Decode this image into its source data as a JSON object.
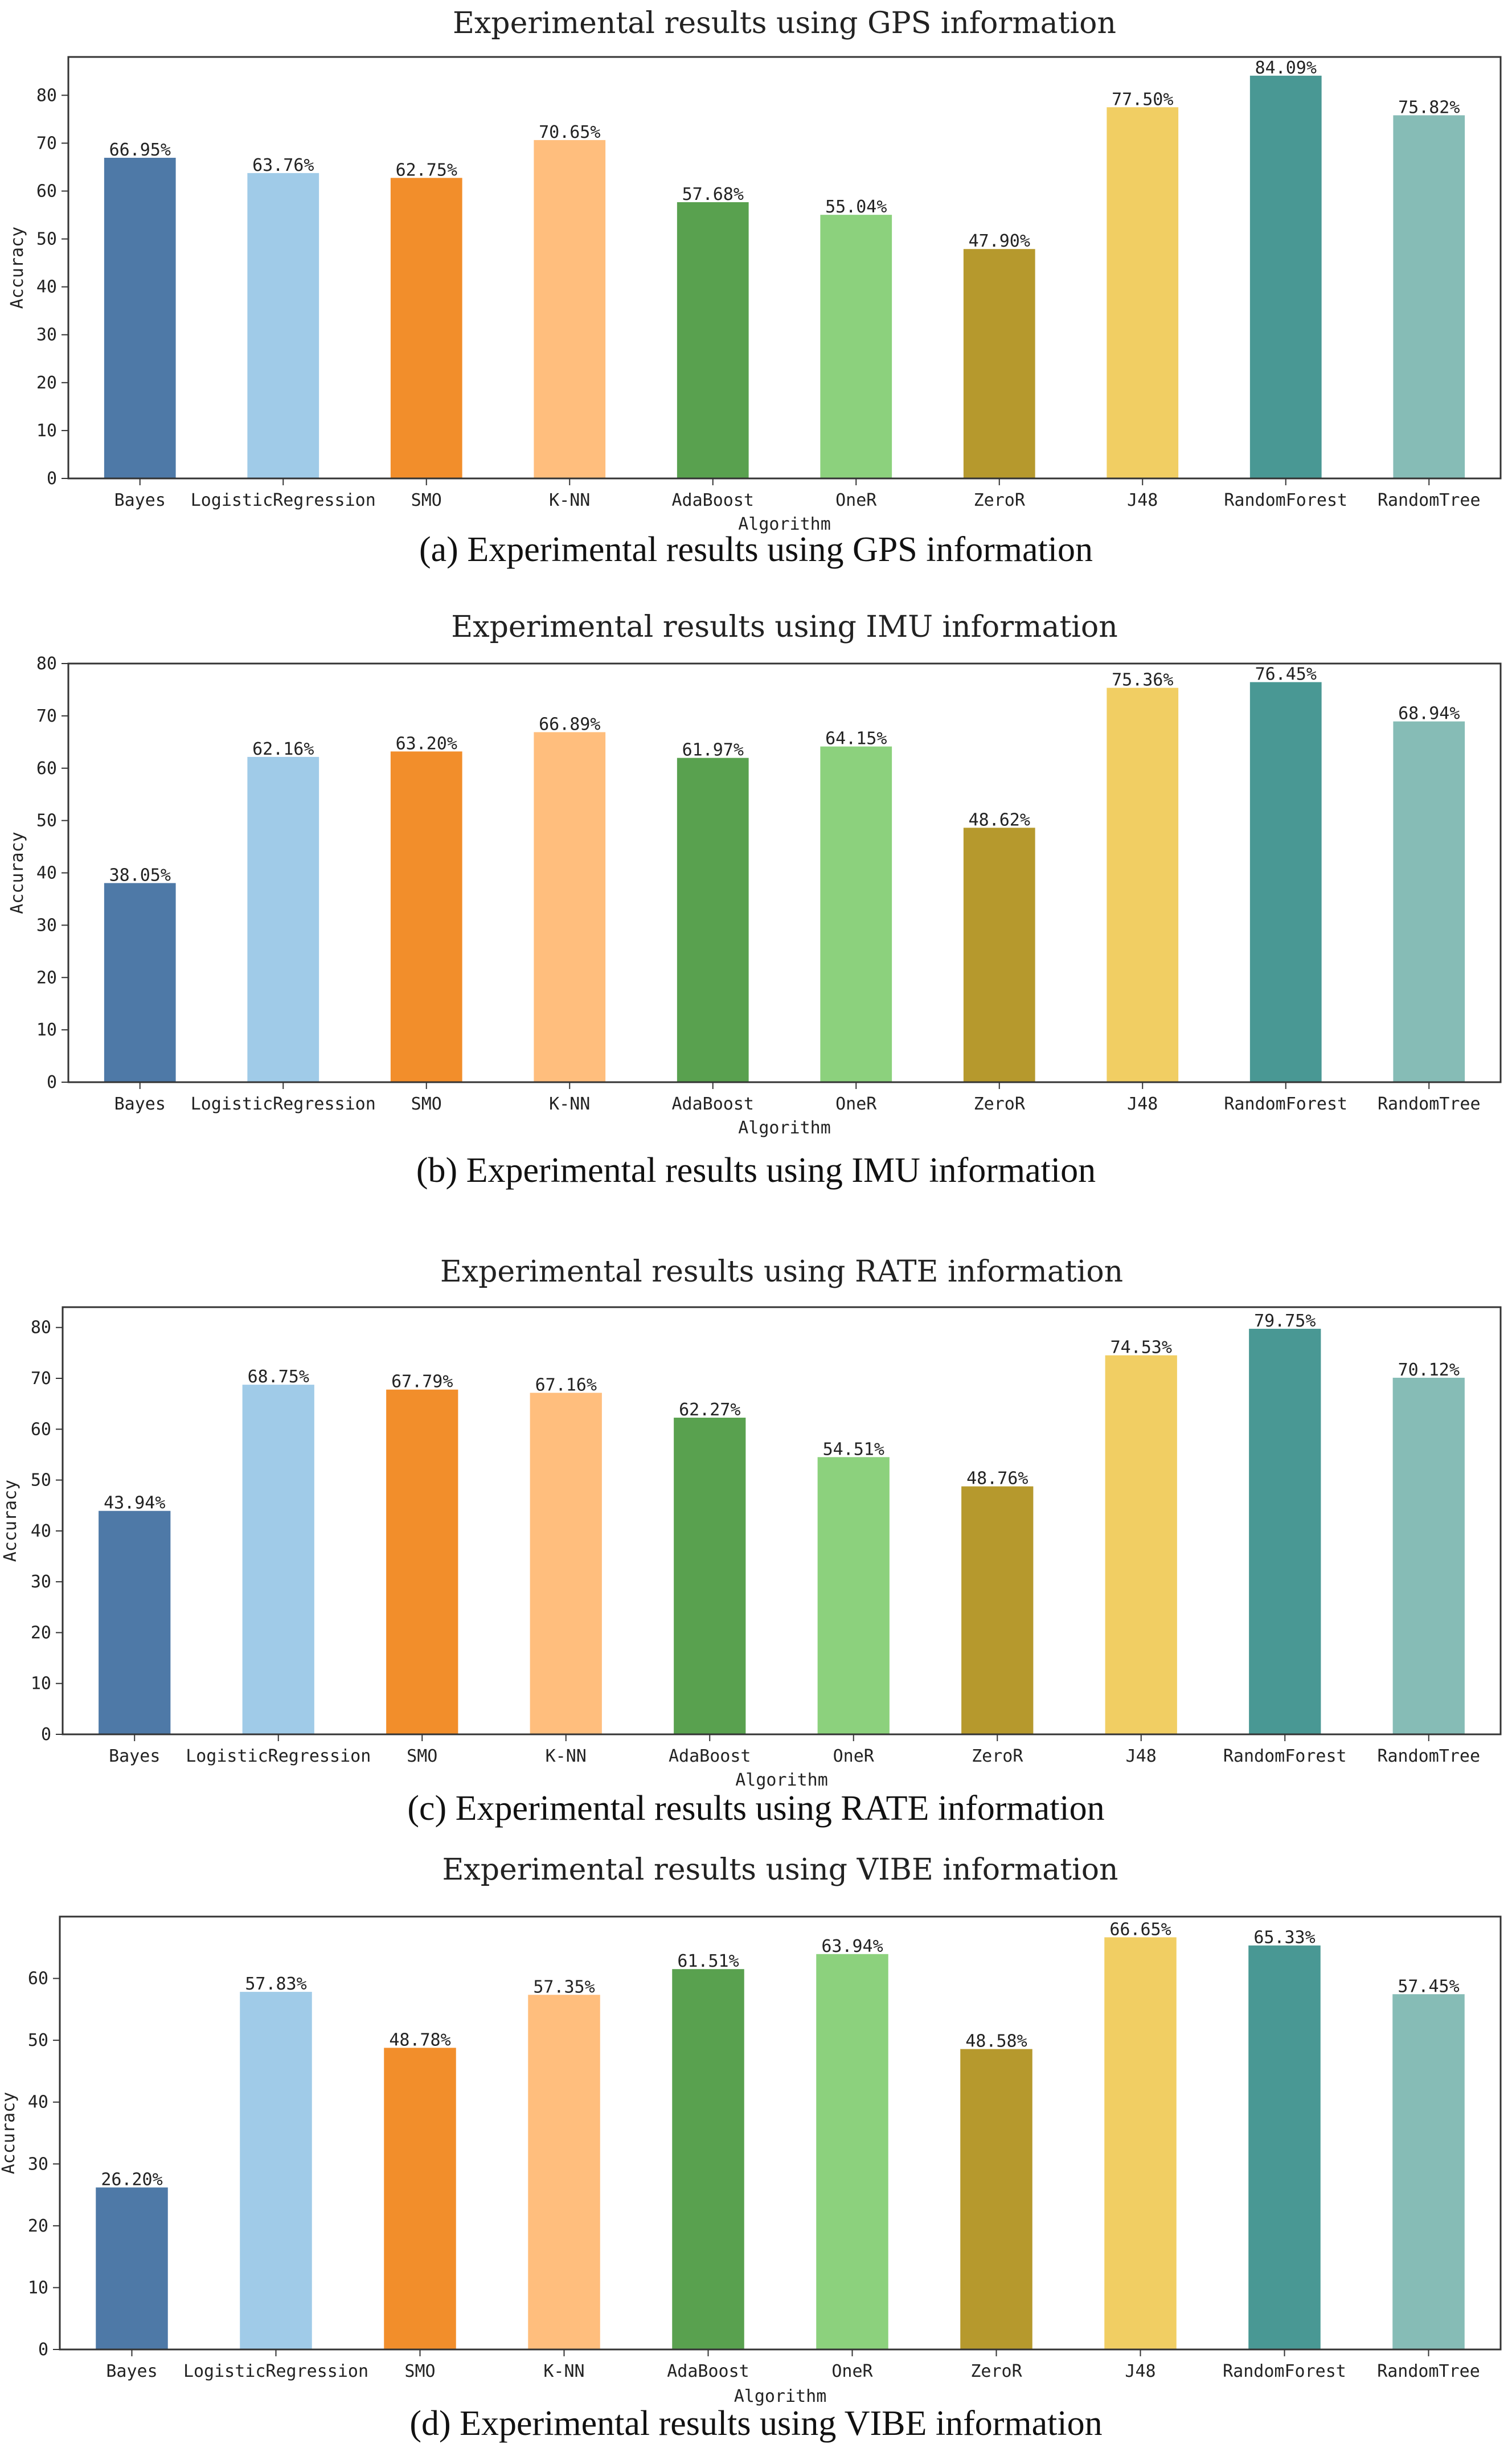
{
  "chart_data": [
    {
      "type": "bar",
      "title": "Experimental  results using GPS information",
      "caption": "(a) Experimental results using GPS information",
      "xlabel": "Algorithm",
      "ylabel": "Accuracy",
      "ylim": [
        0,
        88
      ],
      "yticks": [
        0,
        10,
        20,
        30,
        40,
        50,
        60,
        70,
        80
      ],
      "categories": [
        "Bayes",
        "LogisticRegression",
        "SMO",
        "K-NN",
        "AdaBoost",
        "OneR",
        "ZeroR",
        "J48",
        "RandomForest",
        "RandomTree"
      ],
      "values": [
        66.95,
        63.76,
        62.75,
        70.65,
        57.68,
        55.04,
        47.9,
        77.5,
        84.09,
        75.82
      ],
      "labels": [
        "66.95%",
        "63.76%",
        "62.75%",
        "70.65%",
        "57.68%",
        "55.04%",
        "47.90%",
        "77.50%",
        "84.09%",
        "75.82%"
      ]
    },
    {
      "type": "bar",
      "title": "Experimental  results using IMU information",
      "caption": "(b) Experimental results using IMU information",
      "xlabel": "Algorithm",
      "ylabel": "Accuracy",
      "ylim": [
        0,
        80
      ],
      "yticks": [
        0,
        10,
        20,
        30,
        40,
        50,
        60,
        70,
        80
      ],
      "categories": [
        "Bayes",
        "LogisticRegression",
        "SMO",
        "K-NN",
        "AdaBoost",
        "OneR",
        "ZeroR",
        "J48",
        "RandomForest",
        "RandomTree"
      ],
      "values": [
        38.05,
        62.16,
        63.2,
        66.89,
        61.97,
        64.15,
        48.62,
        75.36,
        76.45,
        68.94
      ],
      "labels": [
        "38.05%",
        "62.16%",
        "63.20%",
        "66.89%",
        "61.97%",
        "64.15%",
        "48.62%",
        "75.36%",
        "76.45%",
        "68.94%"
      ]
    },
    {
      "type": "bar",
      "title": "Experimental  results using RATE information",
      "caption": "(c) Experimental results using RATE information",
      "xlabel": "Algorithm",
      "ylabel": "Accuracy",
      "ylim": [
        0,
        84
      ],
      "yticks": [
        0,
        10,
        20,
        30,
        40,
        50,
        60,
        70,
        80
      ],
      "categories": [
        "Bayes",
        "LogisticRegression",
        "SMO",
        "K-NN",
        "AdaBoost",
        "OneR",
        "ZeroR",
        "J48",
        "RandomForest",
        "RandomTree"
      ],
      "values": [
        43.94,
        68.75,
        67.79,
        67.16,
        62.27,
        54.51,
        48.76,
        74.53,
        79.75,
        70.12
      ],
      "labels": [
        "43.94%",
        "68.75%",
        "67.79%",
        "67.16%",
        "62.27%",
        "54.51%",
        "48.76%",
        "74.53%",
        "79.75%",
        "70.12%"
      ]
    },
    {
      "type": "bar",
      "title": "Experimental  results using VIBE information",
      "caption": "(d) Experimental results using VIBE information",
      "xlabel": "Algorithm",
      "ylabel": "Accuracy",
      "ylim": [
        0,
        70
      ],
      "yticks": [
        0,
        10,
        20,
        30,
        40,
        50,
        60
      ],
      "categories": [
        "Bayes",
        "LogisticRegression",
        "SMO",
        "K-NN",
        "AdaBoost",
        "OneR",
        "ZeroR",
        "J48",
        "RandomForest",
        "RandomTree"
      ],
      "values": [
        26.2,
        57.83,
        48.78,
        57.35,
        61.51,
        63.94,
        48.58,
        66.65,
        65.33,
        57.45
      ],
      "labels": [
        "26.20%",
        "57.83%",
        "48.78%",
        "57.35%",
        "61.51%",
        "63.94%",
        "48.58%",
        "66.65%",
        "65.33%",
        "57.45%"
      ]
    }
  ],
  "colors": {
    "bars": [
      "#4e79a7",
      "#a0cbe8",
      "#f28e2b",
      "#ffbe7d",
      "#59a14f",
      "#8cd17d",
      "#b6992d",
      "#f1ce63",
      "#499894",
      "#86bcb6"
    ],
    "axis": "#333333"
  }
}
